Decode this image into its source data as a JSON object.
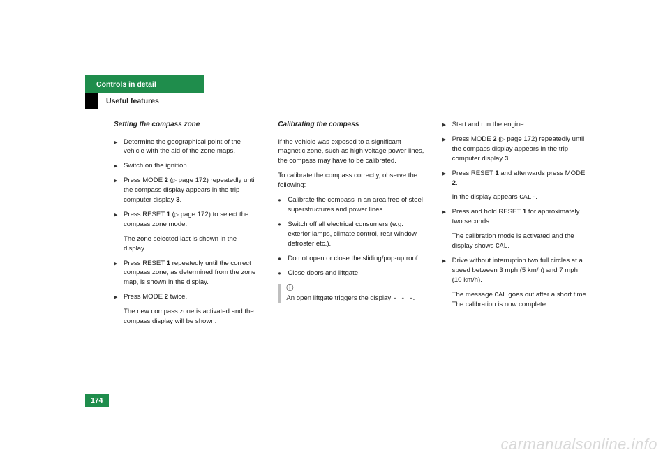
{
  "header": {
    "tab": "Controls in detail",
    "subtitle": "Useful features"
  },
  "col1": {
    "title": "Setting the compass zone",
    "i1": "Determine the geographical point of the vehicle with the aid of the zone maps.",
    "i2": "Switch on the ignition.",
    "i3_a": "Press MODE ",
    "i3_b": "2",
    "i3_c": " (",
    "i3_xref": "▷",
    "i3_d": " page 172) repeated­ly until the compass display appears in the trip computer display ",
    "i3_e": "3",
    "i3_f": ".",
    "i4_a": "Press RESET ",
    "i4_b": "1",
    "i4_c": " (",
    "i4_xref": "▷",
    "i4_d": " page 172) to select the compass zone mode.",
    "i4_note": "The zone selected last is shown in the display.",
    "i5_a": "Press RESET ",
    "i5_b": "1",
    "i5_c": " repeatedly until the cor­rect compass zone, as determined from the zone map, is shown in the dis­play.",
    "i6_a": "Press MODE ",
    "i6_b": "2",
    "i6_c": " twice.",
    "i6_note": "The new compass zone is activated and the compass display will be shown."
  },
  "col2": {
    "title": "Calibrating the compass",
    "p1": "If the vehicle was exposed to a significant magnetic zone, such as high voltage power lines, the compass may have to be calibrat­ed.",
    "p2": "To calibrate the compass correctly, ob­serve the following:",
    "b1": "Calibrate the compass in an area free of steel superstructures and power lines.",
    "b2": "Switch off all electrical consumers (e.g. exterior lamps, climate control, rear window defroster etc.).",
    "b3": "Do not open or close the slid­ing/pop-up roof.",
    "b4": "Close doors and liftgate.",
    "note_a": "An open liftgate triggers the display ",
    "note_code": "- - -",
    "note_b": "."
  },
  "col3": {
    "i1": "Start and run the engine.",
    "i2_a": "Press MODE ",
    "i2_b": "2",
    "i2_c": " (",
    "i2_xref": "▷",
    "i2_d": " page 172) repeated­ly until the compass display appears in the trip computer display ",
    "i2_e": "3",
    "i2_f": ".",
    "i3_a": "Press RESET ",
    "i3_b": "1",
    "i3_c": " and afterwards press MODE ",
    "i3_d": "2",
    "i3_e": ".",
    "i3_note_a": "In the display appears ",
    "i3_note_code": "CAL-",
    "i3_note_b": ".",
    "i4_a": "Press and hold RESET ",
    "i4_b": "1",
    "i4_c": " for approxi­mately two seconds.",
    "i4_note_a": "The calibration mode is activated and the display shows ",
    "i4_note_code": "CAL",
    "i4_note_b": ".",
    "i5": "Drive without interruption two full cir­cles at a speed between 3 mph (5 km/h) and 7 mph (10 km/h).",
    "i5_note_a": "The message ",
    "i5_note_code": "CAL",
    "i5_note_b": " goes out after a short time. The calibration is now complete."
  },
  "footer": {
    "page": "174"
  },
  "watermark": "carmanualsonline.info"
}
